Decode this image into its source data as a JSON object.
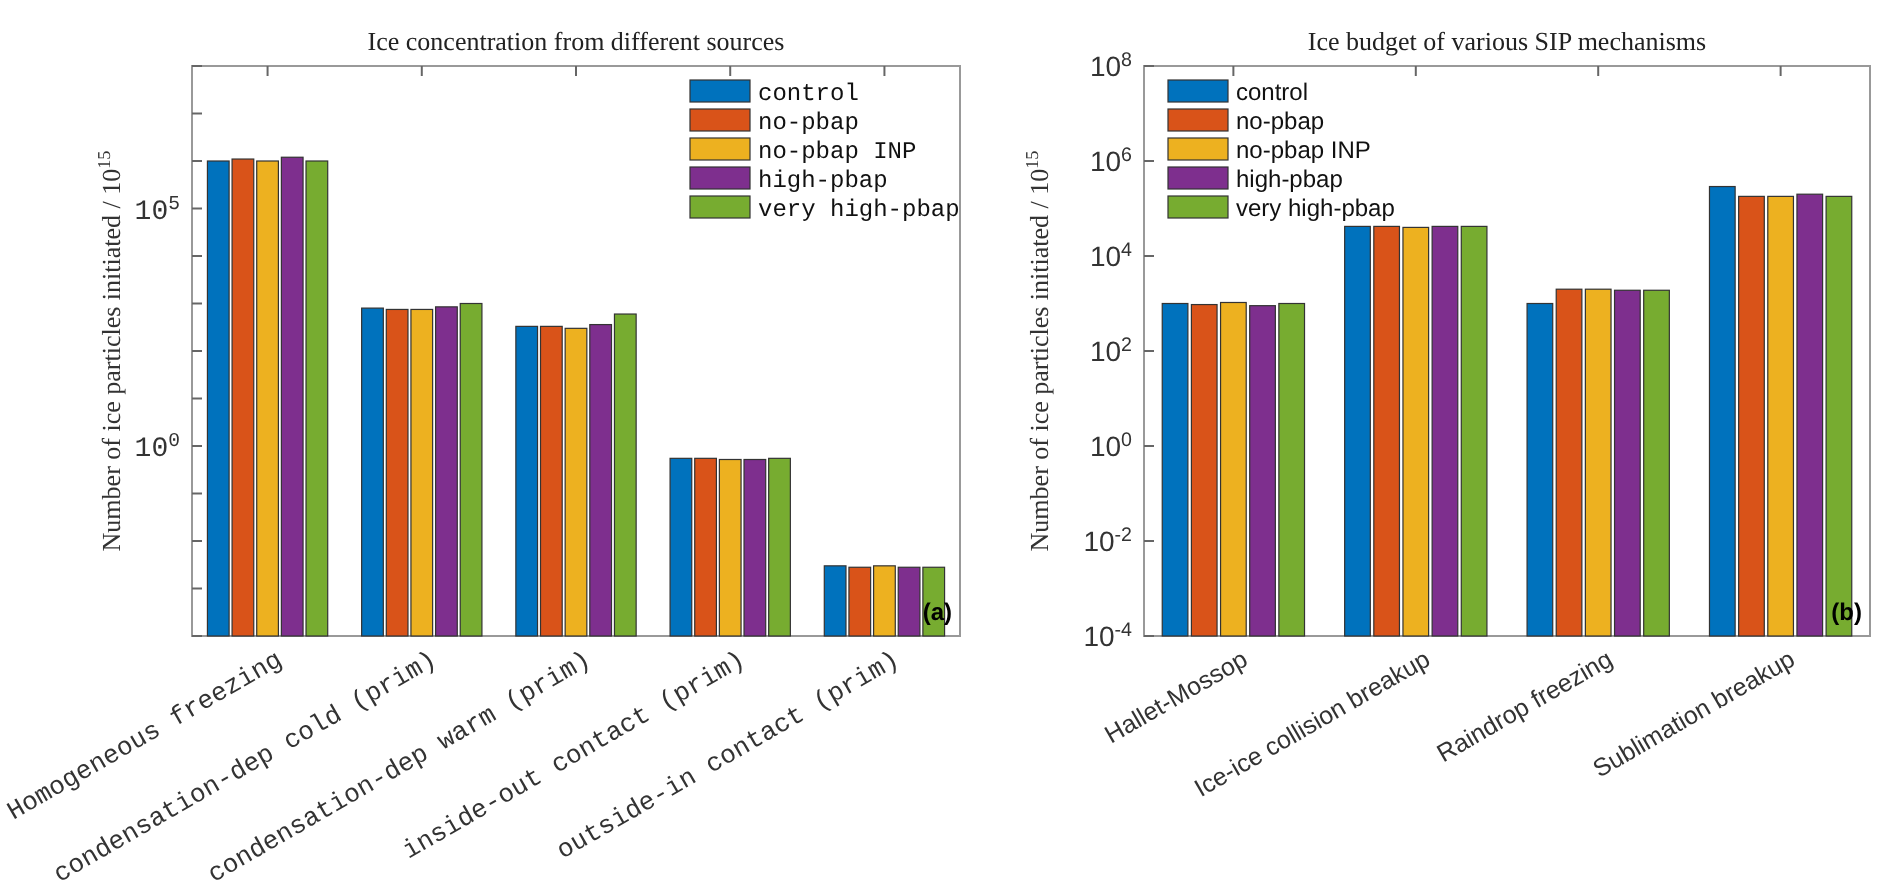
{
  "chart_data": [
    {
      "type": "bar",
      "title": "Ice concentration from different sources",
      "ylabel": "Number of ice particles initiated / 10$^{15}$",
      "categories": [
        "Homogeneous freezing",
        "condensation-dep cold (prim)",
        "condensation-dep warm (prim)",
        "inside-out contact (prim)",
        "outside-in contact (prim)"
      ],
      "series": [
        {
          "name": "control",
          "color": "#0072bd",
          "values": [
            1000000,
            800,
            330,
            0.55,
            0.003
          ]
        },
        {
          "name": "no-pbap",
          "color": "#d95319",
          "values": [
            1100000,
            750,
            330,
            0.55,
            0.0028
          ]
        },
        {
          "name": "no-pbap INP",
          "color": "#edb120",
          "values": [
            1000000,
            750,
            300,
            0.52,
            0.003
          ]
        },
        {
          "name": "high-pbap",
          "color": "#7e2f8e",
          "values": [
            1200000,
            850,
            360,
            0.52,
            0.0028
          ]
        },
        {
          "name": "very high-pbap",
          "color": "#77ac30",
          "values": [
            1000000,
            1000,
            600,
            0.55,
            0.0028
          ]
        }
      ],
      "log": true,
      "ylim": [
        0.0001,
        100000000
      ],
      "yticks": [
        {
          "value": 0.0001,
          "label": null
        },
        {
          "value": 0.001,
          "label": null
        },
        {
          "value": 0.01,
          "label": null
        },
        {
          "value": 0.1,
          "label": null
        },
        {
          "value": 1,
          "label": "10$^{0}$"
        },
        {
          "value": 10,
          "label": null
        },
        {
          "value": 100,
          "label": null
        },
        {
          "value": 1000,
          "label": null
        },
        {
          "value": 10000,
          "label": null
        },
        {
          "value": 100000,
          "label": "10$^{5}$"
        },
        {
          "value": 1000000,
          "label": null
        },
        {
          "value": 10000000,
          "label": null
        },
        {
          "value": 100000000,
          "label": null
        }
      ],
      "legend": "top right",
      "annotations": [
        "(a)"
      ]
    },
    {
      "type": "bar",
      "title": "Ice budget of various SIP mechanisms",
      "ylabel": "Number of ice particles initiated / 10$^{15}$",
      "categories": [
        "Hallet-Mossop",
        "Ice-ice collision breakup",
        "Raindrop freezing",
        "Sublimation breakup"
      ],
      "series": [
        {
          "name": "control",
          "color": "#0072bd",
          "values": [
            1000,
            42000,
            1000,
            290000
          ]
        },
        {
          "name": "no-pbap",
          "color": "#d95319",
          "values": [
            950,
            42000,
            2000,
            180000
          ]
        },
        {
          "name": "no-pbap INP",
          "color": "#edb120",
          "values": [
            1050,
            40000,
            2000,
            180000
          ]
        },
        {
          "name": "high-pbap",
          "color": "#7e2f8e",
          "values": [
            900,
            42000,
            1900,
            200000
          ]
        },
        {
          "name": "very high-pbap",
          "color": "#77ac30",
          "values": [
            1000,
            42000,
            1900,
            180000
          ]
        }
      ],
      "log": true,
      "ylim": [
        0.0001,
        100000000
      ],
      "yticks": [
        {
          "value": 0.0001,
          "label": "10$^{-4}$"
        },
        {
          "value": 0.01,
          "label": "10$^{-2}$"
        },
        {
          "value": 1,
          "label": "10$^{0}$"
        },
        {
          "value": 100,
          "label": "10$^{2}$"
        },
        {
          "value": 10000,
          "label": "10$^{4}$"
        },
        {
          "value": 1000000,
          "label": "10$^{6}$"
        },
        {
          "value": 100000000,
          "label": "10$^{8}$"
        }
      ],
      "legend": "top left",
      "annotations": [
        "(b)"
      ]
    }
  ]
}
